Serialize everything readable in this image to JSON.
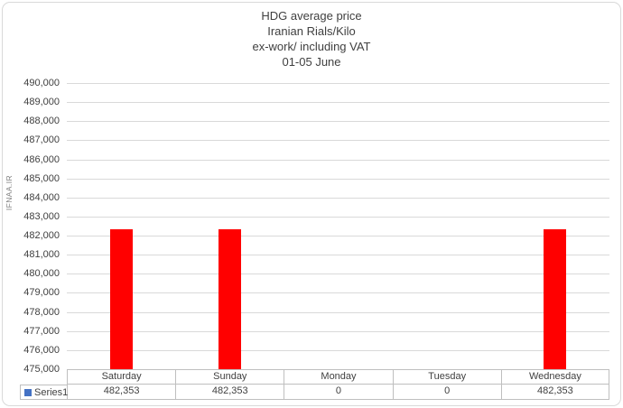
{
  "chart": {
    "title_lines": [
      "HDG average price",
      "Iranian Rials/Kilo",
      "ex-work/ including VAT",
      "01-05 June"
    ]
  },
  "chart_data": {
    "type": "bar",
    "title": "HDG average price Iranian Rials/Kilo ex-work/ including VAT 01-05 June",
    "y_axis_title": "IFNAA.IR",
    "categories": [
      "Saturday",
      "Sunday",
      "Monday",
      "Tuesday",
      "Wednesday"
    ],
    "series": [
      {
        "name": "Series1",
        "values": [
          482353,
          482353,
          0,
          0,
          482353
        ]
      }
    ],
    "value_labels": [
      "482,353",
      "482,353",
      "0",
      "0",
      "482,353"
    ],
    "ylim": [
      475000,
      490000
    ],
    "ytick_step": 1000,
    "ytick_labels": [
      "490,000",
      "489,000",
      "488,000",
      "487,000",
      "486,000",
      "485,000",
      "484,000",
      "483,000",
      "482,000",
      "481,000",
      "480,000",
      "479,000",
      "478,000",
      "477,000",
      "476,000",
      "475,000"
    ],
    "grid": true,
    "legend_position": "data-table-left",
    "bar_color": "#ff0000",
    "legend_key_color": "#4472c4",
    "gridline_color": "#d9d9d9",
    "table_border_color": "#bfbfbf",
    "text_color": "#404040"
  }
}
